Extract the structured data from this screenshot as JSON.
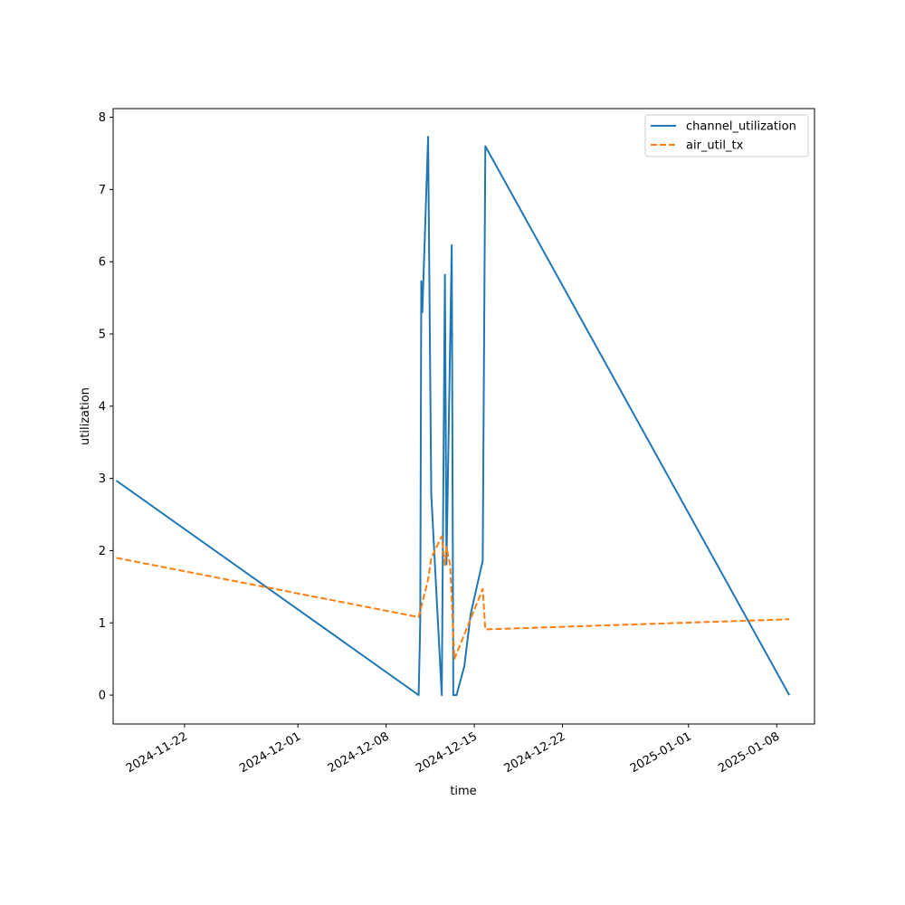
{
  "chart_data": {
    "type": "line",
    "title": "",
    "xlabel": "time",
    "ylabel": "utilization",
    "x_is_date": true,
    "xlim": [
      "2024-11-16T08:00",
      "2025-01-11T00:00"
    ],
    "ylim": [
      -0.4,
      8.12
    ],
    "xticks": [
      {
        "value": "2024-11-22",
        "label": "2024-11-22"
      },
      {
        "value": "2024-12-01",
        "label": "2024-12-01"
      },
      {
        "value": "2024-12-08",
        "label": "2024-12-08"
      },
      {
        "value": "2024-12-15",
        "label": "2024-12-15"
      },
      {
        "value": "2024-12-22",
        "label": "2024-12-22"
      },
      {
        "value": "2025-01-01",
        "label": "2025-01-01"
      },
      {
        "value": "2025-01-08",
        "label": "2025-01-08"
      }
    ],
    "yticks": [
      0,
      1,
      2,
      3,
      4,
      5,
      6,
      7,
      8
    ],
    "grid": false,
    "legend_position": "upper-right",
    "series": [
      {
        "name": "channel_utilization",
        "color": "#1f77b4",
        "style": "solid",
        "x": [
          "2024-11-16T14:00",
          "2024-12-10T14:00",
          "2024-12-10T17:00",
          "2024-12-10T19:00",
          "2024-12-10T21:00",
          "2024-12-11T08:00",
          "2024-12-11T14:00",
          "2024-12-12T10:00",
          "2024-12-12T16:00",
          "2024-12-12T19:00",
          "2024-12-13T05:00",
          "2024-12-13T08:00",
          "2024-12-13T14:00",
          "2024-12-14T05:00",
          "2024-12-14T17:00",
          "2024-12-15T16:00",
          "2024-12-15T21:00",
          "2025-01-09T00:00"
        ],
        "y": [
          2.97,
          0.0,
          1.0,
          5.73,
          5.3,
          7.73,
          2.78,
          0.0,
          5.82,
          1.81,
          6.23,
          0.0,
          0.0,
          0.4,
          1.12,
          1.86,
          7.6,
          0.0
        ]
      },
      {
        "name": "air_util_tx",
        "color": "#ff7f0e",
        "style": "dashed",
        "x": [
          "2024-11-16T14:00",
          "2024-12-10T14:00",
          "2024-12-11T08:00",
          "2024-12-11T14:00",
          "2024-12-12T10:00",
          "2024-12-12T16:00",
          "2024-12-12T19:00",
          "2024-12-13T02:00",
          "2024-12-13T10:00",
          "2024-12-15T16:00",
          "2024-12-15T21:00",
          "2025-01-09T00:00"
        ],
        "y": [
          1.9,
          1.08,
          1.6,
          1.9,
          2.2,
          1.8,
          2.05,
          1.8,
          0.5,
          1.47,
          0.91,
          1.05
        ]
      }
    ]
  }
}
